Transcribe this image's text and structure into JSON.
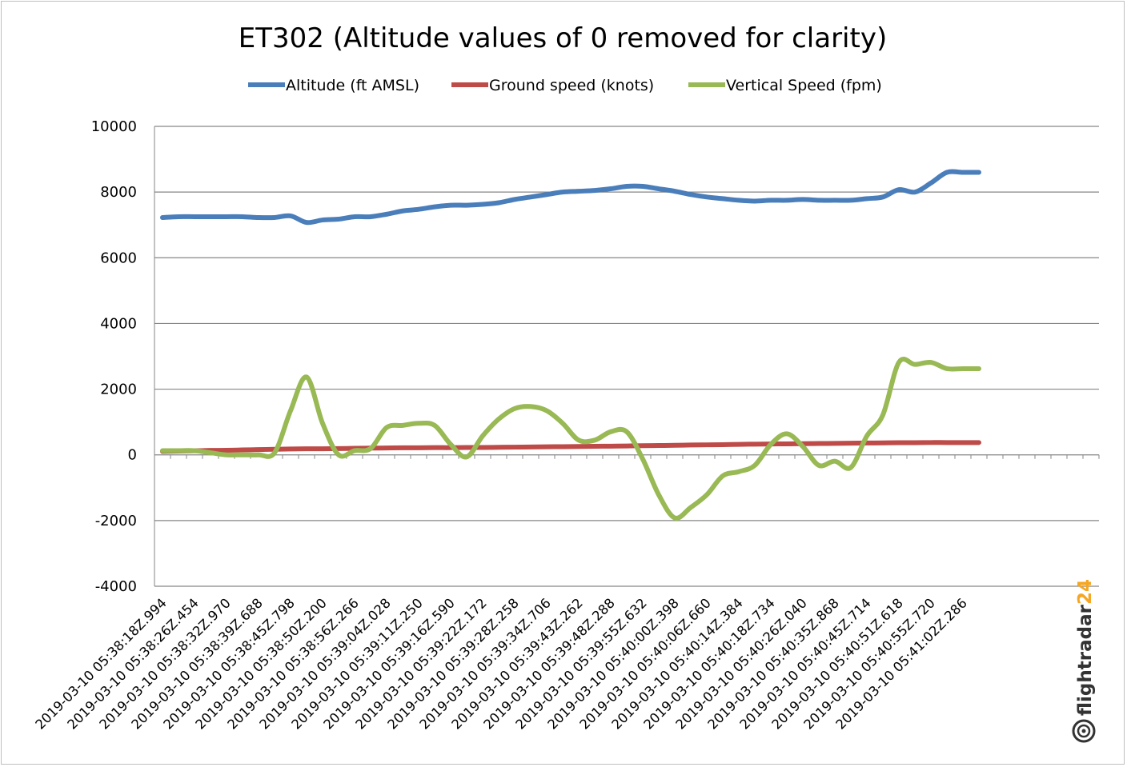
{
  "chart_data": {
    "type": "line",
    "title": "ET302 (Altitude values of 0 removed for clarity)",
    "xlabel": "",
    "ylabel": "",
    "ylim": [
      -4000,
      10000
    ],
    "yticks": [
      10000,
      8000,
      6000,
      4000,
      2000,
      0,
      -2000,
      -4000
    ],
    "y_tick_labels": [
      "10000",
      "8000",
      "6000",
      "4000",
      "2000",
      "0",
      "-2000",
      "-4000"
    ],
    "grid": "horizontal",
    "legend_position": "top",
    "n_points": 52,
    "category_slots": 59,
    "x_tick_labels": [
      "2019-03-10 05:38:18Z.994",
      "2019-03-10 05:38:26Z.454",
      "2019-03-10 05:38:32Z.970",
      "2019-03-10 05:38:39Z.688",
      "2019-03-10 05:38:45Z.798",
      "2019-03-10 05:38:50Z.200",
      "2019-03-10 05:38:56Z.266",
      "2019-03-10 05:39:04Z.028",
      "2019-03-10 05:39:11Z.250",
      "2019-03-10 05:39:16Z.590",
      "2019-03-10 05:39:22Z.172",
      "2019-03-10 05:39:28Z.258",
      "2019-03-10 05:39:34Z.706",
      "2019-03-10 05:39:43Z.262",
      "2019-03-10 05:39:48Z.288",
      "2019-03-10 05:39:55Z.632",
      "2019-03-10 05:40:00Z.398",
      "2019-03-10 05:40:06Z.660",
      "2019-03-10 05:40:14Z.384",
      "2019-03-10 05:40:18Z.734",
      "2019-03-10 05:40:26Z.040",
      "2019-03-10 05:40:35Z.868",
      "2019-03-10 05:40:45Z.714",
      "2019-03-10 05:40:51Z.618",
      "2019-03-10 05:40:55Z.720",
      "2019-03-10 05:41:02Z.286"
    ],
    "series": [
      {
        "name": "Altitude (ft AMSL)",
        "color": "#4a7ebb",
        "values": [
          7225,
          7250,
          7250,
          7250,
          7250,
          7250,
          7225,
          7225,
          7275,
          7075,
          7150,
          7175,
          7250,
          7250,
          7325,
          7425,
          7475,
          7550,
          7600,
          7600,
          7625,
          7675,
          7775,
          7850,
          7925,
          8000,
          8025,
          8050,
          8100,
          8175,
          8175,
          8100,
          8025,
          7925,
          7850,
          7800,
          7750,
          7725,
          7750,
          7750,
          7775,
          7750,
          7750,
          7750,
          7800,
          7850,
          8075,
          8000,
          8275,
          8600,
          8600,
          8600
        ]
      },
      {
        "name": "Ground speed (knots)",
        "color": "#be4b48",
        "values": [
          105,
          115,
          125,
          135,
          140,
          150,
          160,
          170,
          180,
          185,
          185,
          190,
          200,
          205,
          210,
          215,
          215,
          220,
          220,
          225,
          225,
          230,
          235,
          240,
          245,
          250,
          255,
          260,
          265,
          270,
          280,
          285,
          290,
          300,
          305,
          310,
          320,
          325,
          330,
          335,
          340,
          345,
          350,
          355,
          360,
          365,
          370,
          370,
          375,
          375,
          375,
          375
        ]
      },
      {
        "name": "Vertical Speed (fpm)",
        "color": "#98b954",
        "values": [
          128,
          128,
          128,
          64,
          0,
          0,
          0,
          64,
          1344,
          2368,
          960,
          0,
          128,
          192,
          832,
          896,
          960,
          896,
          320,
          -64,
          576,
          1088,
          1408,
          1472,
          1344,
          960,
          448,
          448,
          704,
          704,
          -128,
          -1216,
          -1920,
          -1600,
          -1216,
          -640,
          -512,
          -320,
          320,
          640,
          256,
          -320,
          -192,
          -384,
          576,
          1216,
          2816,
          2752,
          2816,
          2624,
          2624,
          2624
        ]
      }
    ]
  },
  "logo": {
    "text_main": "flightradar",
    "text_accent": "24",
    "main_color": "#333333",
    "accent_color": "#f5a623"
  }
}
